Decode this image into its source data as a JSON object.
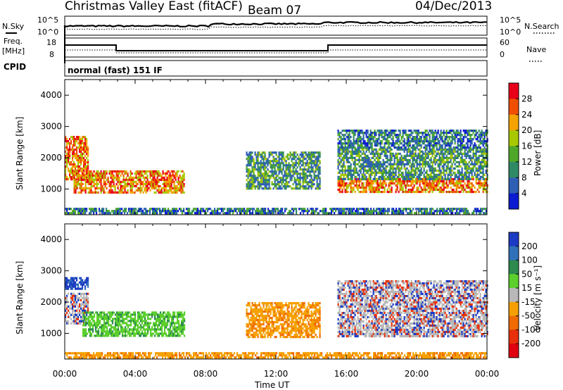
{
  "header": {
    "station": "Christmas Valley East (fitACF)",
    "beam": "Beam 07",
    "date": "04/Dec/2013"
  },
  "noise_panel": {
    "left_label": "N.Sky",
    "left_ticks": [
      "10^5",
      "10^0"
    ],
    "right_ticks": [
      "10^5",
      "10^0"
    ],
    "right_label": "N.Search"
  },
  "freq_panel": {
    "left_label_1": "Freq.",
    "left_label_2": "[MHz]",
    "left_ticks": [
      "18",
      "8"
    ],
    "right_ticks": [
      "60",
      "0"
    ],
    "right_label": "Nave",
    "cpid_label": "CPID",
    "mode": "normal (fast) 151 IF"
  },
  "chart_data": [
    {
      "type": "heatmap",
      "name_label": "Power",
      "colorbar_label": "Power [dB]",
      "colorbar_ticks": [
        "28",
        "24",
        "20",
        "16",
        "12",
        "8",
        "4"
      ],
      "colorbar_colors": [
        "#e8001a",
        "#f04f00",
        "#f5a300",
        "#a8c800",
        "#4fa82a",
        "#2e8a65",
        "#2e5fb5",
        "#0b1bd0"
      ],
      "ylabel": "Slant Range [km]",
      "yticks": [
        1000,
        2000,
        3000,
        4000
      ],
      "ylim": [
        180,
        4500
      ],
      "xlim_hours": [
        0,
        24
      ],
      "regions": [
        {
          "t0": 0.0,
          "t1": 1.3,
          "r0": 1300,
          "r1": 2700,
          "level": "strong"
        },
        {
          "t0": 0.5,
          "t1": 6.8,
          "r0": 900,
          "r1": 1600,
          "level": "strong"
        },
        {
          "t0": 10.3,
          "t1": 14.5,
          "r0": 1000,
          "r1": 2200,
          "level": "medium"
        },
        {
          "t0": 15.5,
          "t1": 24.0,
          "r0": 900,
          "r1": 1350,
          "level": "strong"
        },
        {
          "t0": 15.5,
          "t1": 24.0,
          "r0": 1350,
          "r1": 2300,
          "level": "medium"
        },
        {
          "t0": 15.5,
          "t1": 24.0,
          "r0": 2300,
          "r1": 2900,
          "level": "weak"
        },
        {
          "t0": 0.0,
          "t1": 24.0,
          "r0": 200,
          "r1": 400,
          "level": "ground"
        }
      ]
    },
    {
      "type": "heatmap",
      "name_label": "Velocity",
      "colorbar_label": "Velocity [m s⁻¹]",
      "colorbar_ticks": [
        "200",
        "100",
        "50",
        "15",
        "-15",
        "-50",
        "-100",
        "-200"
      ],
      "colorbar_colors": [
        "#1b3bc4",
        "#3070b8",
        "#2c8a4e",
        "#5ccf2d",
        "#b8b8b8",
        "#f5a000",
        "#f06a00",
        "#e8300a",
        "#e00010"
      ],
      "ylabel": "Slant Range [km]",
      "yticks": [
        1000,
        2000,
        3000,
        4000
      ],
      "ylim": [
        180,
        4500
      ],
      "xlim_hours": [
        0,
        24
      ],
      "regions": [
        {
          "t0": 0.0,
          "t1": 1.3,
          "r0": 2400,
          "r1": 2800,
          "level": "positive_high"
        },
        {
          "t0": 0.0,
          "t1": 1.3,
          "r0": 1300,
          "r1": 2300,
          "level": "gs"
        },
        {
          "t0": 1.0,
          "t1": 6.8,
          "r0": 900,
          "r1": 1700,
          "level": "positive"
        },
        {
          "t0": 10.3,
          "t1": 14.5,
          "r0": 900,
          "r1": 2000,
          "level": "negative"
        },
        {
          "t0": 15.5,
          "t1": 24.0,
          "r0": 900,
          "r1": 2700,
          "level": "gs"
        },
        {
          "t0": 0.0,
          "t1": 24.0,
          "r0": 200,
          "r1": 400,
          "level": "negative"
        }
      ]
    }
  ],
  "x_axis": {
    "ticks": [
      "00:00",
      "04:00",
      "08:00",
      "12:00",
      "16:00",
      "20:00",
      "00:00"
    ],
    "label": "Time UT"
  }
}
